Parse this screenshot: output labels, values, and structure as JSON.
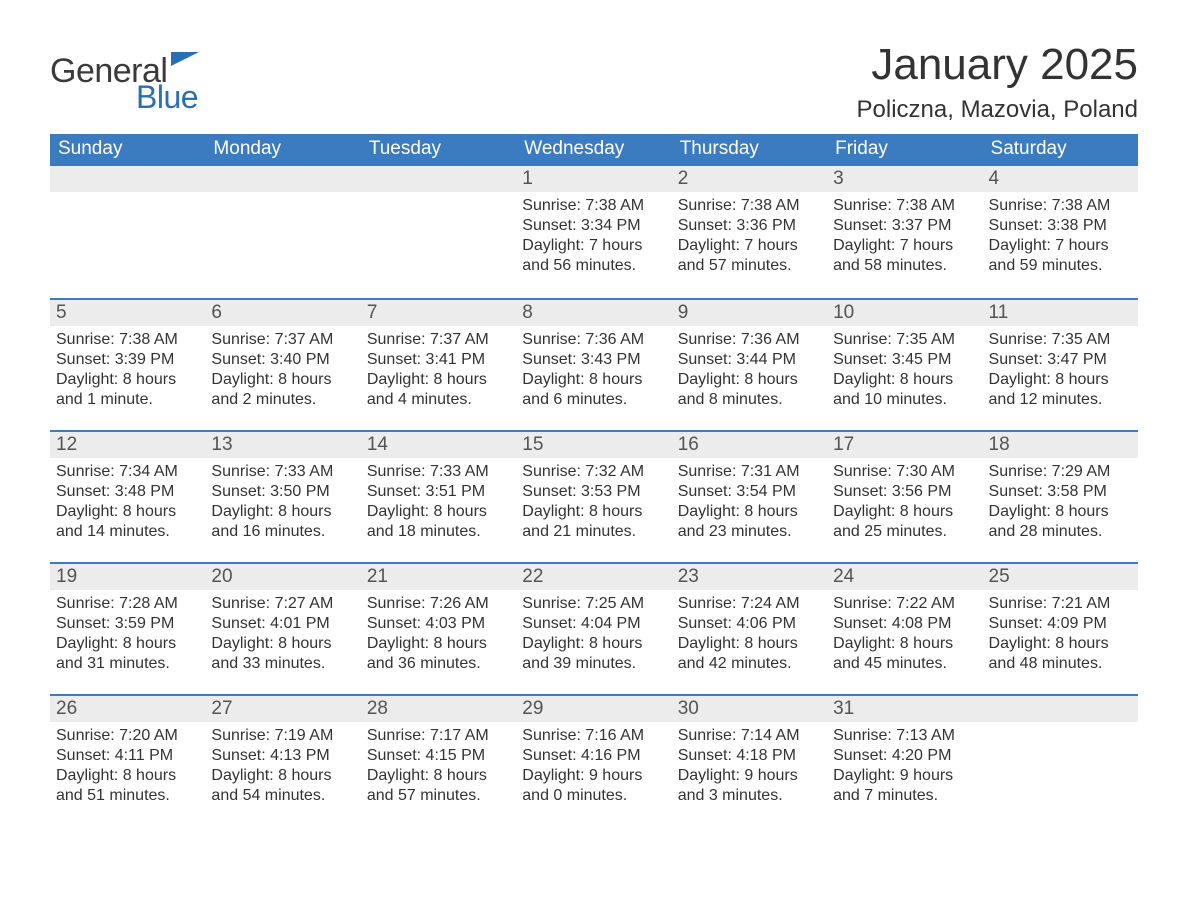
{
  "brand": {
    "word1": "General",
    "word2": "Blue",
    "word1_color": "#3a3a3a",
    "word2_color": "#2a6fb5",
    "flag_color": "#2a6fb5"
  },
  "title": "January 2025",
  "location": "Policzna, Mazovia, Poland",
  "colors": {
    "header_bg": "#3b7bbf",
    "header_text": "#ffffff",
    "daynum_bg": "#ececec",
    "daynum_text": "#545454",
    "body_text": "#333333",
    "divider": "#3b7bbf",
    "page_bg": "#ffffff"
  },
  "typography": {
    "title_fontsize": 44,
    "location_fontsize": 24,
    "day_header_fontsize": 19,
    "daynum_fontsize": 19,
    "body_fontsize": 16
  },
  "day_headers": [
    "Sunday",
    "Monday",
    "Tuesday",
    "Wednesday",
    "Thursday",
    "Friday",
    "Saturday"
  ],
  "weeks": [
    [
      {
        "num": "",
        "sunrise": "",
        "sunset": "",
        "daylight1": "",
        "daylight2": ""
      },
      {
        "num": "",
        "sunrise": "",
        "sunset": "",
        "daylight1": "",
        "daylight2": ""
      },
      {
        "num": "",
        "sunrise": "",
        "sunset": "",
        "daylight1": "",
        "daylight2": ""
      },
      {
        "num": "1",
        "sunrise": "Sunrise: 7:38 AM",
        "sunset": "Sunset: 3:34 PM",
        "daylight1": "Daylight: 7 hours",
        "daylight2": "and 56 minutes."
      },
      {
        "num": "2",
        "sunrise": "Sunrise: 7:38 AM",
        "sunset": "Sunset: 3:36 PM",
        "daylight1": "Daylight: 7 hours",
        "daylight2": "and 57 minutes."
      },
      {
        "num": "3",
        "sunrise": "Sunrise: 7:38 AM",
        "sunset": "Sunset: 3:37 PM",
        "daylight1": "Daylight: 7 hours",
        "daylight2": "and 58 minutes."
      },
      {
        "num": "4",
        "sunrise": "Sunrise: 7:38 AM",
        "sunset": "Sunset: 3:38 PM",
        "daylight1": "Daylight: 7 hours",
        "daylight2": "and 59 minutes."
      }
    ],
    [
      {
        "num": "5",
        "sunrise": "Sunrise: 7:38 AM",
        "sunset": "Sunset: 3:39 PM",
        "daylight1": "Daylight: 8 hours",
        "daylight2": "and 1 minute."
      },
      {
        "num": "6",
        "sunrise": "Sunrise: 7:37 AM",
        "sunset": "Sunset: 3:40 PM",
        "daylight1": "Daylight: 8 hours",
        "daylight2": "and 2 minutes."
      },
      {
        "num": "7",
        "sunrise": "Sunrise: 7:37 AM",
        "sunset": "Sunset: 3:41 PM",
        "daylight1": "Daylight: 8 hours",
        "daylight2": "and 4 minutes."
      },
      {
        "num": "8",
        "sunrise": "Sunrise: 7:36 AM",
        "sunset": "Sunset: 3:43 PM",
        "daylight1": "Daylight: 8 hours",
        "daylight2": "and 6 minutes."
      },
      {
        "num": "9",
        "sunrise": "Sunrise: 7:36 AM",
        "sunset": "Sunset: 3:44 PM",
        "daylight1": "Daylight: 8 hours",
        "daylight2": "and 8 minutes."
      },
      {
        "num": "10",
        "sunrise": "Sunrise: 7:35 AM",
        "sunset": "Sunset: 3:45 PM",
        "daylight1": "Daylight: 8 hours",
        "daylight2": "and 10 minutes."
      },
      {
        "num": "11",
        "sunrise": "Sunrise: 7:35 AM",
        "sunset": "Sunset: 3:47 PM",
        "daylight1": "Daylight: 8 hours",
        "daylight2": "and 12 minutes."
      }
    ],
    [
      {
        "num": "12",
        "sunrise": "Sunrise: 7:34 AM",
        "sunset": "Sunset: 3:48 PM",
        "daylight1": "Daylight: 8 hours",
        "daylight2": "and 14 minutes."
      },
      {
        "num": "13",
        "sunrise": "Sunrise: 7:33 AM",
        "sunset": "Sunset: 3:50 PM",
        "daylight1": "Daylight: 8 hours",
        "daylight2": "and 16 minutes."
      },
      {
        "num": "14",
        "sunrise": "Sunrise: 7:33 AM",
        "sunset": "Sunset: 3:51 PM",
        "daylight1": "Daylight: 8 hours",
        "daylight2": "and 18 minutes."
      },
      {
        "num": "15",
        "sunrise": "Sunrise: 7:32 AM",
        "sunset": "Sunset: 3:53 PM",
        "daylight1": "Daylight: 8 hours",
        "daylight2": "and 21 minutes."
      },
      {
        "num": "16",
        "sunrise": "Sunrise: 7:31 AM",
        "sunset": "Sunset: 3:54 PM",
        "daylight1": "Daylight: 8 hours",
        "daylight2": "and 23 minutes."
      },
      {
        "num": "17",
        "sunrise": "Sunrise: 7:30 AM",
        "sunset": "Sunset: 3:56 PM",
        "daylight1": "Daylight: 8 hours",
        "daylight2": "and 25 minutes."
      },
      {
        "num": "18",
        "sunrise": "Sunrise: 7:29 AM",
        "sunset": "Sunset: 3:58 PM",
        "daylight1": "Daylight: 8 hours",
        "daylight2": "and 28 minutes."
      }
    ],
    [
      {
        "num": "19",
        "sunrise": "Sunrise: 7:28 AM",
        "sunset": "Sunset: 3:59 PM",
        "daylight1": "Daylight: 8 hours",
        "daylight2": "and 31 minutes."
      },
      {
        "num": "20",
        "sunrise": "Sunrise: 7:27 AM",
        "sunset": "Sunset: 4:01 PM",
        "daylight1": "Daylight: 8 hours",
        "daylight2": "and 33 minutes."
      },
      {
        "num": "21",
        "sunrise": "Sunrise: 7:26 AM",
        "sunset": "Sunset: 4:03 PM",
        "daylight1": "Daylight: 8 hours",
        "daylight2": "and 36 minutes."
      },
      {
        "num": "22",
        "sunrise": "Sunrise: 7:25 AM",
        "sunset": "Sunset: 4:04 PM",
        "daylight1": "Daylight: 8 hours",
        "daylight2": "and 39 minutes."
      },
      {
        "num": "23",
        "sunrise": "Sunrise: 7:24 AM",
        "sunset": "Sunset: 4:06 PM",
        "daylight1": "Daylight: 8 hours",
        "daylight2": "and 42 minutes."
      },
      {
        "num": "24",
        "sunrise": "Sunrise: 7:22 AM",
        "sunset": "Sunset: 4:08 PM",
        "daylight1": "Daylight: 8 hours",
        "daylight2": "and 45 minutes."
      },
      {
        "num": "25",
        "sunrise": "Sunrise: 7:21 AM",
        "sunset": "Sunset: 4:09 PM",
        "daylight1": "Daylight: 8 hours",
        "daylight2": "and 48 minutes."
      }
    ],
    [
      {
        "num": "26",
        "sunrise": "Sunrise: 7:20 AM",
        "sunset": "Sunset: 4:11 PM",
        "daylight1": "Daylight: 8 hours",
        "daylight2": "and 51 minutes."
      },
      {
        "num": "27",
        "sunrise": "Sunrise: 7:19 AM",
        "sunset": "Sunset: 4:13 PM",
        "daylight1": "Daylight: 8 hours",
        "daylight2": "and 54 minutes."
      },
      {
        "num": "28",
        "sunrise": "Sunrise: 7:17 AM",
        "sunset": "Sunset: 4:15 PM",
        "daylight1": "Daylight: 8 hours",
        "daylight2": "and 57 minutes."
      },
      {
        "num": "29",
        "sunrise": "Sunrise: 7:16 AM",
        "sunset": "Sunset: 4:16 PM",
        "daylight1": "Daylight: 9 hours",
        "daylight2": "and 0 minutes."
      },
      {
        "num": "30",
        "sunrise": "Sunrise: 7:14 AM",
        "sunset": "Sunset: 4:18 PM",
        "daylight1": "Daylight: 9 hours",
        "daylight2": "and 3 minutes."
      },
      {
        "num": "31",
        "sunrise": "Sunrise: 7:13 AM",
        "sunset": "Sunset: 4:20 PM",
        "daylight1": "Daylight: 9 hours",
        "daylight2": "and 7 minutes."
      },
      {
        "num": "",
        "sunrise": "",
        "sunset": "",
        "daylight1": "",
        "daylight2": ""
      }
    ]
  ]
}
